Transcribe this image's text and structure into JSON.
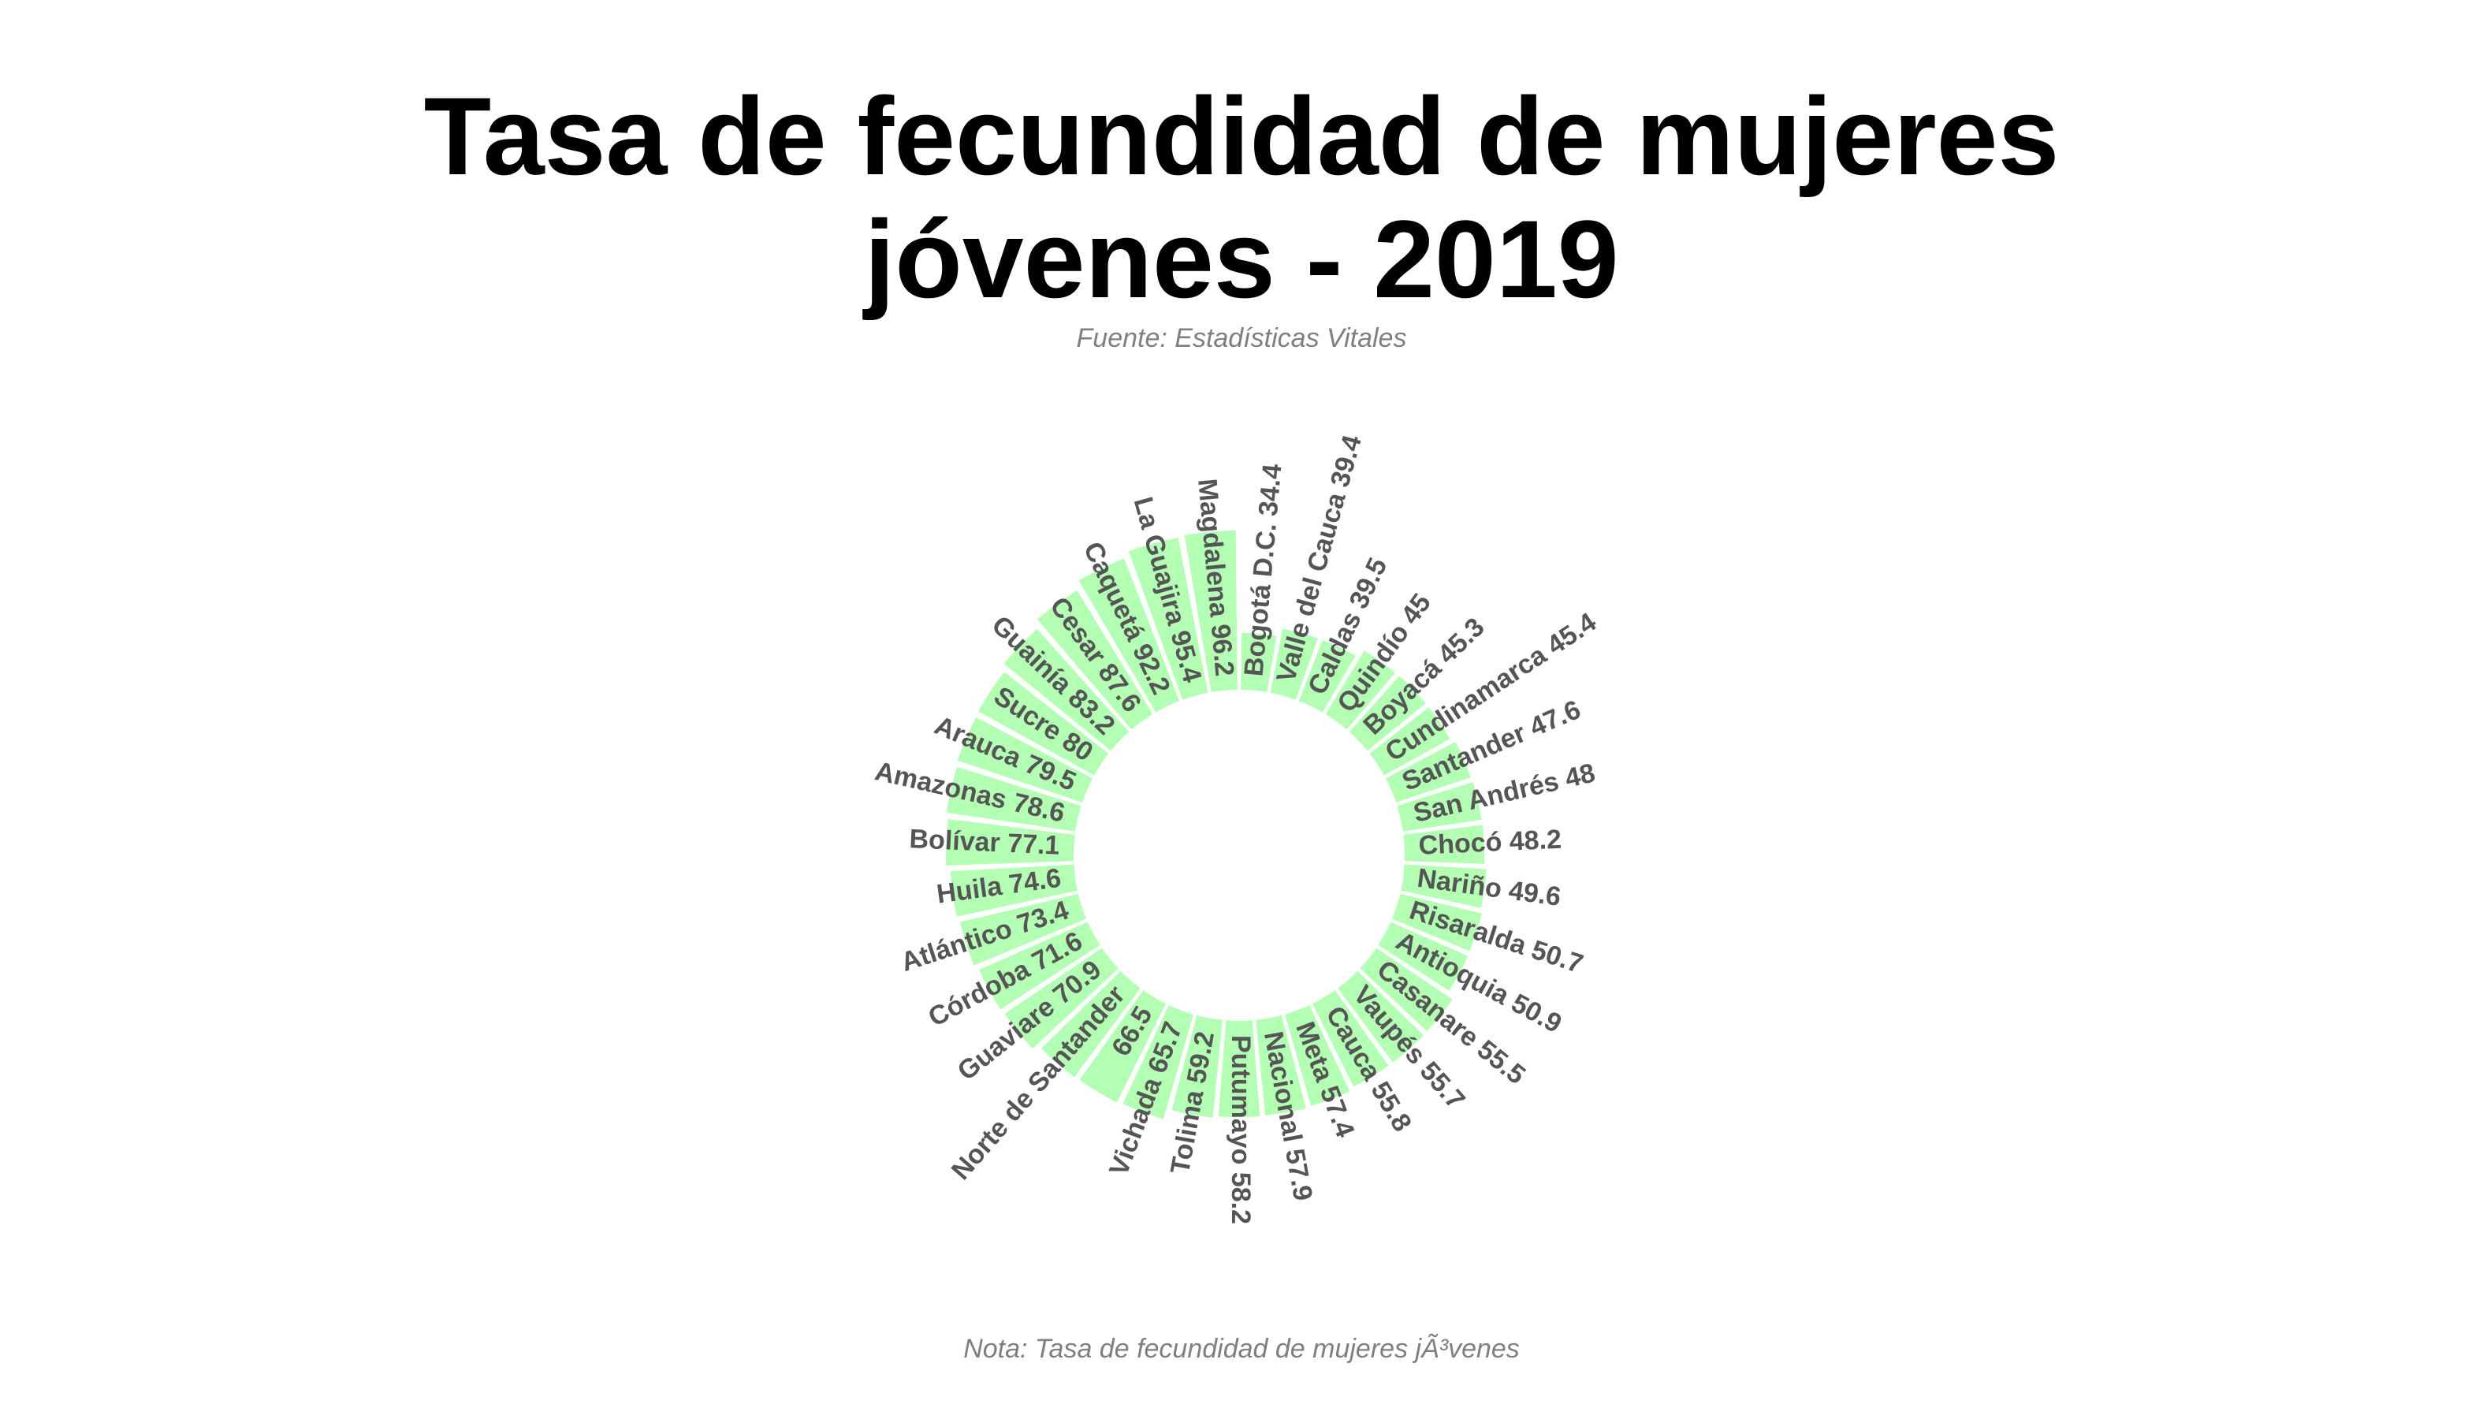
{
  "header": {
    "title_line1": "Tasa de fecundidad de mujeres",
    "title_line2": "jóvenes - 2019",
    "subtitle": "Fuente: Estadísticas Vitales"
  },
  "footer": {
    "note": "Nota: Tasa de fecundidad de mujeres jÃ³venes"
  },
  "colors": {
    "bar_fill": "#b3ffb3",
    "label_text": "#555555"
  },
  "chart_data": {
    "type": "bar",
    "coordinate_system": "polar",
    "title": "Tasa de fecundidad de mujeres jóvenes - 2019",
    "subtitle": "Fuente: Estadísticas Vitales",
    "note": "Nota: Tasa de fecundidad de mujeres jÃ³venes",
    "categories": [
      "Bogotá D.C.",
      "Valle del Cauca",
      "Caldas",
      "Quindío",
      "Boyacá",
      "Cundinamarca",
      "Santander",
      "San Andrés",
      "Chocó",
      "Nariño",
      "Risaralda",
      "Antioquia",
      "Casanare",
      "Vaupés",
      "Cauca",
      "Meta",
      "Nacional",
      "Putumayo",
      "Tolima",
      "Vichada",
      "",
      "Norte de Santander",
      "Guaviare",
      "Córdoba",
      "Atlántico",
      "Huila",
      "Bolívar",
      "Amazonas",
      "Arauca",
      "Sucre",
      "Guainía",
      "Cesar",
      "Caquetá",
      "La Guajira",
      "Magdalena"
    ],
    "values": [
      34.4,
      39.4,
      39.5,
      45,
      45.3,
      45.4,
      47.6,
      48,
      48.2,
      49.6,
      50.7,
      50.9,
      55.5,
      55.7,
      55.8,
      57.4,
      57.9,
      58.2,
      59.2,
      65.7,
      66.5,
      66.9,
      70.9,
      71.6,
      73.4,
      74.6,
      77.1,
      78.6,
      79.5,
      80,
      83.2,
      87.6,
      92.2,
      95.4,
      96.2
    ],
    "labels": [
      "Bogotá D.C. 34.4",
      "Valle del Cauca 39.4",
      "Caldas 39.5",
      "Quindío 45",
      "Boyacá 45.3",
      "Cundinamarca 45.4",
      "Santander 47.6",
      "San Andrés 48",
      "Chocó 48.2",
      "Nariño 49.6",
      "Risaralda 50.7",
      "Antioquia 50.9",
      "Casanare 55.5",
      "Vaupés 55.7",
      "Cauca 55.8",
      "Meta 57.4",
      "Nacional 57.9",
      "Putumayo 58.2",
      "Tolima 59.2",
      "Vichada 65.7",
      "66.5",
      "Norte de Santander",
      "Guaviare 70.9",
      "Córdoba 71.6",
      "Atlántico 73.4",
      "Huila 74.6",
      "Bolívar 77.1",
      "Amazonas 78.6",
      "Arauca 79.5",
      "Sucre 80",
      "Guainía 83.2",
      "Cesar 87.6",
      "Caquetá 92.2",
      "La Guajira 95.4",
      "Magdalena 96.2"
    ],
    "order": "ascending clockwise from top",
    "grid": false,
    "legend": "none"
  }
}
